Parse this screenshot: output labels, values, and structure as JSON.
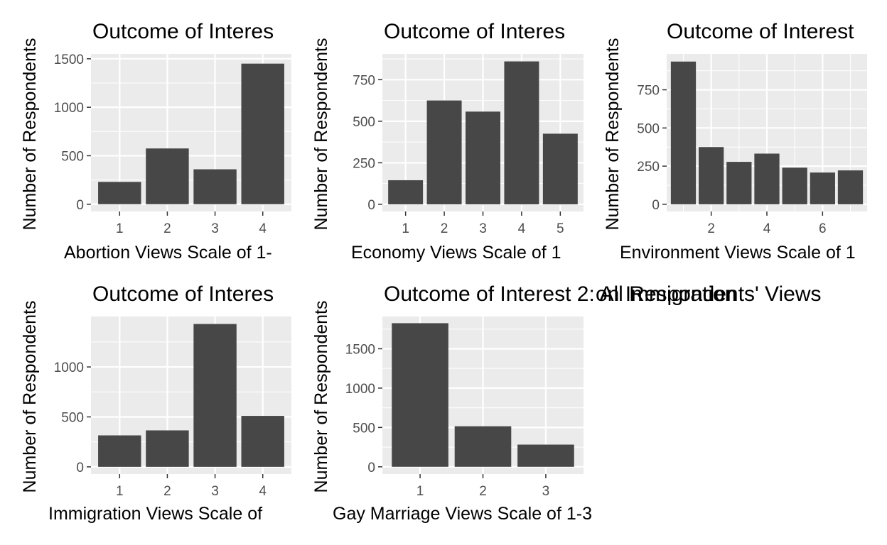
{
  "colors": {
    "panel_background": "#ebebeb",
    "grid_line": "#ffffff",
    "bar_fill": "#474747",
    "tick_text": "#4d4d4d",
    "text": "#000000"
  },
  "chart_data": [
    {
      "type": "bar",
      "title": "Outcome of Interes",
      "xlabel": "Abortion Views Scale of 1-",
      "ylabel": "Number of Respondents",
      "categories": [
        "1",
        "2",
        "3",
        "4"
      ],
      "x": [
        1,
        2,
        3,
        4
      ],
      "values": [
        230,
        575,
        360,
        1450
      ],
      "xlim": [
        0.4,
        4.6
      ],
      "ylim": [
        -75,
        1550
      ],
      "xticks": [
        1,
        2,
        3,
        4
      ],
      "yticks": [
        0,
        500,
        1000,
        1500
      ],
      "grid": true,
      "legend": "none"
    },
    {
      "type": "bar",
      "title": "Outcome of Interes",
      "xlabel": "Economy Views Scale of 1",
      "ylabel": "Number of Respondents",
      "categories": [
        "1",
        "2",
        "3",
        "4",
        "5"
      ],
      "x": [
        1,
        2,
        3,
        4,
        5
      ],
      "values": [
        145,
        625,
        558,
        860,
        425
      ],
      "xlim": [
        0.4,
        5.6
      ],
      "ylim": [
        -43,
        905
      ],
      "xticks": [
        1,
        2,
        3,
        4,
        5
      ],
      "yticks": [
        0,
        250,
        500,
        750
      ],
      "grid": true,
      "legend": "none"
    },
    {
      "type": "bar",
      "title": "Outcome of Interest",
      "xlabel": "Environment Views Scale of 1",
      "ylabel": "Number of Respondents",
      "categories": [
        "1",
        "2",
        "3",
        "4",
        "5",
        "6",
        "7"
      ],
      "x": [
        1,
        2,
        3,
        4,
        5,
        6,
        7
      ],
      "values": [
        935,
        375,
        278,
        332,
        240,
        208,
        222
      ],
      "xlim": [
        0.4,
        7.6
      ],
      "ylim": [
        -47,
        985
      ],
      "xticks": [
        2,
        4,
        6
      ],
      "yticks": [
        0,
        250,
        500,
        750
      ],
      "grid": true,
      "legend": "none"
    },
    {
      "type": "bar",
      "title": "Outcome of Interes",
      "xlabel": "Immigration Views Scale of",
      "ylabel": "Number of Respondents",
      "categories": [
        "1",
        "2",
        "3",
        "4"
      ],
      "x": [
        1,
        2,
        3,
        4
      ],
      "values": [
        315,
        365,
        1430,
        510
      ],
      "xlim": [
        0.4,
        4.6
      ],
      "ylim": [
        -72,
        1505
      ],
      "xticks": [
        1,
        2,
        3,
        4
      ],
      "yticks": [
        0,
        500,
        1000
      ],
      "grid": true,
      "legend": "none"
    },
    {
      "type": "bar",
      "title": "Outcome of Interest 2: All Respondents' Views",
      "title_overlap": "on Immigration",
      "xlabel": "Gay Marriage Views Scale of 1-3",
      "ylabel": "Number of Respondents",
      "categories": [
        "1",
        "2",
        "3"
      ],
      "x": [
        1,
        2,
        3
      ],
      "values": [
        1825,
        515,
        282
      ],
      "xlim": [
        0.4,
        3.6
      ],
      "ylim": [
        -92,
        1910
      ],
      "xticks": [
        1,
        2,
        3
      ],
      "yticks": [
        0,
        500,
        1000,
        1500
      ],
      "grid": true,
      "legend": "none"
    }
  ]
}
